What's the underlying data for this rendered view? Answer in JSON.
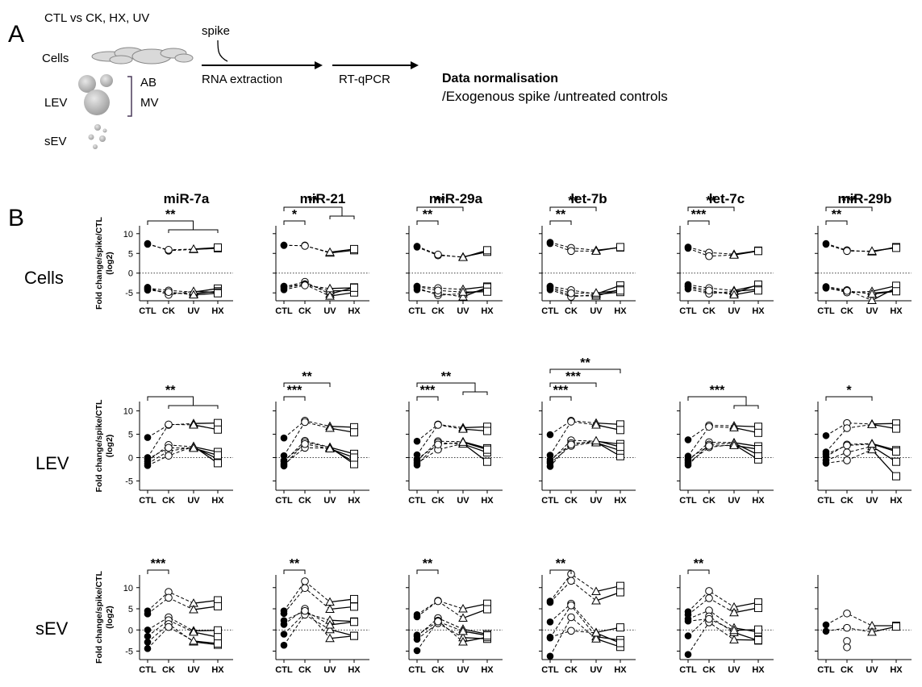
{
  "panel_a": {
    "letter": "A",
    "condition_label": "CTL vs CK, HX, UV",
    "cells_label": "Cells",
    "lev_label": "LEV",
    "sev_label": "sEV",
    "ab_label": "AB",
    "mv_label": "MV",
    "spike_label": "spike",
    "rna_label": "RNA extraction",
    "qpcr_label": "RT-qPCR",
    "norm_title": "Data normalisation",
    "norm_subtitle": "/Exogenous spike /untreated controls"
  },
  "panel_b": {
    "letter": "B",
    "row_labels": [
      "Cells",
      "LEV",
      "sEV"
    ],
    "ylabel_line1": "Fold change/spike/CTL",
    "ylabel_line2": "(log2)"
  },
  "chart_data": {
    "type": "line",
    "categories": [
      "CTL",
      "CK",
      "UV",
      "HX"
    ],
    "markers": {
      "CTL": "filled-circle",
      "CK": "open-circle",
      "UV": "open-triangle",
      "HX": "open-square"
    },
    "mirnas": [
      "miR-7a",
      "miR-21",
      "miR-29a",
      "let-7b",
      "let-7c",
      "miR-29b"
    ],
    "rows": [
      {
        "name": "Cells",
        "ylim": [
          -7,
          12
        ],
        "yticks": [
          -5,
          0,
          5,
          10
        ],
        "panels": [
          {
            "series": [
              [
                7.5,
                5.7,
                6,
                6.3
              ],
              [
                7.3,
                5.9,
                6.1,
                6.5
              ],
              [
                -3.8,
                -4.4,
                -4.8,
                -3.9
              ],
              [
                -4,
                -5,
                -5.2,
                -4.6
              ],
              [
                -3.6,
                -5.5,
                -4.6,
                -4.9
              ],
              [
                -4.3,
                -4.8,
                -5.5,
                -5.1
              ]
            ],
            "sig": [
              {
                "label": "**",
                "type": "bracket_group",
                "from": 0,
                "to": [
                  1,
                  3
                ]
              }
            ]
          },
          {
            "series": [
              [
                7,
                7,
                5.1,
                5.8
              ],
              [
                7.1,
                6.9,
                5.3,
                6.1
              ],
              [
                -3.5,
                -2.2,
                -5.3,
                -3.6
              ],
              [
                -3.8,
                -2.8,
                -4.5,
                -4.4
              ],
              [
                -3.3,
                -2.9,
                -5.8,
                -4.9
              ],
              [
                -4.2,
                -3.1,
                -3.9,
                -3.7
              ]
            ],
            "sig": [
              {
                "label": "*",
                "type": "bar",
                "from": 0,
                "to": 1
              },
              {
                "label": "**",
                "type": "bracket_group",
                "from": 0,
                "to": [
                  2,
                  3
                ]
              }
            ]
          },
          {
            "series": [
              [
                6.6,
                4.5,
                4.1,
                5.4
              ],
              [
                6.8,
                4.7,
                4,
                5.8
              ],
              [
                -3.3,
                -3.8,
                -4.1,
                -3.4
              ],
              [
                -3.7,
                -5.6,
                -5.2,
                -4.2
              ],
              [
                -4.2,
                -5.1,
                -6,
                -3.6
              ],
              [
                -3.4,
                -4.4,
                -4.8,
                -4.7
              ]
            ],
            "sig": [
              {
                "label": "**",
                "type": "bar",
                "from": 0,
                "to": 1
              },
              {
                "label": "**",
                "type": "bar",
                "from": 0,
                "to": 2
              }
            ]
          },
          {
            "series": [
              [
                7.8,
                6.4,
                5.8,
                6.5
              ],
              [
                7.5,
                5.6,
                5.6,
                6.6
              ],
              [
                -3.3,
                -4.3,
                -5.3,
                -3.1
              ],
              [
                -3.8,
                -5.7,
                -5.8,
                -4.1
              ],
              [
                -4.2,
                -6,
                -5.4,
                -4.8
              ],
              [
                -3.5,
                -5.1,
                -5,
                -4.4
              ]
            ],
            "sig": [
              {
                "label": "**",
                "type": "bar",
                "from": 0,
                "to": 1
              },
              {
                "label": "**",
                "type": "bar",
                "from": 0,
                "to": 2
              }
            ]
          },
          {
            "series": [
              [
                6.6,
                5.2,
                4.8,
                5.7
              ],
              [
                6.3,
                4.3,
                4.6,
                5.6
              ],
              [
                -2.9,
                -3.8,
                -4.4,
                -3.1
              ],
              [
                -3.5,
                -4.9,
                -5.1,
                -2.9
              ],
              [
                -4,
                -5.2,
                -4.6,
                -4.1
              ],
              [
                -3.3,
                -4.4,
                -5.5,
                -4.4
              ]
            ],
            "sig": [
              {
                "label": "***",
                "type": "bar",
                "from": 0,
                "to": 1
              },
              {
                "label": "**",
                "type": "bar",
                "from": 0,
                "to": 2
              }
            ]
          },
          {
            "series": [
              [
                7.5,
                5.8,
                5.4,
                6.6
              ],
              [
                7.3,
                5.6,
                5.6,
                6.4
              ],
              [
                -3.4,
                -4.3,
                -6.9,
                -3.7
              ],
              [
                -3.8,
                -4.7,
                -5.1,
                -4.5
              ],
              [
                -3.6,
                -4.9,
                -4.6,
                -3.2
              ],
              [
                -3.7,
                -4.5,
                -5.3,
                -4.6
              ]
            ],
            "sig": [
              {
                "label": "**",
                "type": "bar",
                "from": 0,
                "to": 1
              },
              {
                "label": "***",
                "type": "bar",
                "from": 0,
                "to": 2
              }
            ]
          }
        ]
      },
      {
        "name": "LEV",
        "ylim": [
          -7,
          12
        ],
        "yticks": [
          -5,
          0,
          5,
          10
        ],
        "panels": [
          {
            "series": [
              [
                4.3,
                7,
                7.3,
                7.4
              ],
              [
                0,
                7.1,
                7,
                6
              ],
              [
                -0.8,
                2.7,
                2.3,
                1.2
              ],
              [
                -1.3,
                1.4,
                2.2,
                -0.3
              ],
              [
                -1.7,
                0.4,
                2.4,
                -1.2
              ],
              [
                -0.3,
                2.1,
                2,
                0.5
              ]
            ],
            "sig": [
              {
                "label": "**",
                "type": "bracket_group",
                "from": 0,
                "to": [
                  1,
                  3
                ]
              }
            ]
          },
          {
            "series": [
              [
                4.2,
                7.9,
                6.7,
                6.5
              ],
              [
                0.4,
                7.6,
                6.3,
                5.4
              ],
              [
                -0.9,
                3.6,
                2.2,
                0.8
              ],
              [
                -1.4,
                2.1,
                2,
                -0.9
              ],
              [
                -1.8,
                3.3,
                2.2,
                -1.4
              ],
              [
                -0.6,
                2.9,
                1.9,
                0
              ]
            ],
            "sig": [
              {
                "label": "***",
                "type": "bar",
                "from": 0,
                "to": 1
              },
              {
                "label": "**",
                "type": "bar",
                "from": 0,
                "to": 2
              }
            ]
          },
          {
            "series": [
              [
                3.5,
                7.1,
                6.4,
                6.6
              ],
              [
                0.6,
                7,
                6.1,
                5.7
              ],
              [
                -0.7,
                3.5,
                3.4,
                2
              ],
              [
                -1.2,
                1.7,
                3,
                -0.9
              ],
              [
                -1.6,
                3.2,
                2.9,
                1.1
              ],
              [
                -0.3,
                2.8,
                3.3,
                1.7
              ]
            ],
            "sig": [
              {
                "label": "***",
                "type": "bar",
                "from": 0,
                "to": 1
              },
              {
                "label": "**",
                "type": "bracket_group",
                "from": 0,
                "to": [
                  2,
                  3
                ]
              }
            ]
          },
          {
            "series": [
              [
                4.9,
                7.9,
                7.4,
                7.1
              ],
              [
                0.5,
                7.7,
                7,
                5.9
              ],
              [
                -0.8,
                3.7,
                3.5,
                2.9
              ],
              [
                -1.2,
                2.5,
                3.3,
                0.3
              ],
              [
                -1.9,
                3.1,
                3.2,
                1.5
              ],
              [
                -0.4,
                2.8,
                3.6,
                2.3
              ]
            ],
            "sig": [
              {
                "label": "***",
                "type": "bar",
                "from": 0,
                "to": 1
              },
              {
                "label": "***",
                "type": "bar",
                "from": 0,
                "to": 2
              },
              {
                "label": "**",
                "type": "bar",
                "from": 0,
                "to": 3
              }
            ]
          },
          {
            "series": [
              [
                3.8,
                6.9,
                6.8,
                6.6
              ],
              [
                0.3,
                6.6,
                6.4,
                5.3
              ],
              [
                -0.7,
                3.3,
                3.2,
                2.4
              ],
              [
                -1.2,
                2.2,
                2.8,
                -0.4
              ],
              [
                -1.6,
                2.8,
                3.1,
                0.6
              ],
              [
                -0.3,
                2.5,
                2.6,
                1.8
              ]
            ],
            "sig": [
              {
                "label": "***",
                "type": "bracket_group",
                "from": 0,
                "to": [
                  2,
                  3
                ]
              }
            ]
          },
          {
            "series": [
              [
                4.7,
                7.4,
                7.2,
                7.3
              ],
              [
                1.2,
                6.3,
                7.1,
                6.2
              ],
              [
                0.2,
                2.8,
                3,
                1.6
              ],
              [
                -0.6,
                1.1,
                2.4,
                -0.9
              ],
              [
                -1.2,
                -0.6,
                1.7,
                -4
              ],
              [
                0.7,
                2.6,
                2.9,
                1.3
              ]
            ],
            "sig": [
              {
                "label": "*",
                "type": "bar",
                "from": 0,
                "to": 2
              }
            ]
          }
        ]
      },
      {
        "name": "sEV",
        "ylim": [
          -7,
          13
        ],
        "yticks": [
          -5,
          0,
          5,
          10
        ],
        "panels": [
          {
            "series": [
              [
                4.5,
                9,
                6.3,
                7
              ],
              [
                3.8,
                7.6,
                4.8,
                5.6
              ],
              [
                0,
                3,
                -0.2,
                -0.1
              ],
              [
                -1.5,
                2.3,
                -0.5,
                -1.7
              ],
              [
                -2.9,
                1.4,
                -2.8,
                -3.5
              ],
              [
                -4.4,
                0.7,
                -2.6,
                -3.2
              ]
            ],
            "sig": [
              {
                "label": "***",
                "type": "bar",
                "from": 0,
                "to": 1
              }
            ]
          },
          {
            "series": [
              [
                4.5,
                11.5,
                6.6,
                7.3
              ],
              [
                3.9,
                9.9,
                4.9,
                5.5
              ],
              [
                1.3,
                5,
                -2,
                -1.4
              ],
              [
                -1,
                4,
                2.3,
                2
              ],
              [
                -3.6,
                3.6,
                0.1,
                -1.4
              ],
              [
                2.2,
                4.5,
                1.2,
                1.9
              ]
            ],
            "sig": [
              {
                "label": "**",
                "type": "bar",
                "from": 0,
                "to": 1
              }
            ]
          },
          {
            "series": [
              [
                3.6,
                6.9,
                5,
                6.2
              ],
              [
                3.1,
                6.8,
                2.8,
                4.9
              ],
              [
                -1.5,
                2.8,
                0.2,
                -1
              ],
              [
                -2.2,
                1.6,
                -1.8,
                -2.1
              ],
              [
                -4.9,
                2.2,
                -2.8,
                -1.7
              ],
              [
                -1.2,
                2,
                -0.3,
                -1.3
              ]
            ],
            "sig": [
              {
                "label": "**",
                "type": "bar",
                "from": 0,
                "to": 1
              }
            ]
          },
          {
            "series": [
              [
                6.8,
                13.2,
                9.1,
                10.4
              ],
              [
                6.5,
                11.6,
                6.9,
                8.9
              ],
              [
                1.9,
                6.2,
                -0.6,
                0.6
              ],
              [
                -1.9,
                5.8,
                -1.6,
                -2.4
              ],
              [
                -6.2,
                3,
                -2.1,
                -4
              ],
              [
                -1.7,
                -0.2,
                -0.7,
                -3.1
              ]
            ],
            "sig": [
              {
                "label": "**",
                "type": "bar",
                "from": 0,
                "to": 1
              }
            ]
          },
          {
            "series": [
              [
                4.3,
                9.2,
                5.4,
                6.5
              ],
              [
                3.6,
                7.5,
                4.1,
                5.2
              ],
              [
                2.6,
                4.6,
                0.5,
                -0.5
              ],
              [
                -1.4,
                3.2,
                -0.6,
                -2.5
              ],
              [
                -5.8,
                1.8,
                -2.3,
                -2.4
              ],
              [
                2.1,
                2.6,
                -0.1,
                0.1
              ]
            ],
            "sig": [
              {
                "label": "**",
                "type": "bar",
                "from": 0,
                "to": 1
              }
            ]
          },
          {
            "series": [
              [
                1.2,
                3.9,
                1,
                1
              ],
              [
                -0.3,
                0.5,
                -0.5,
                0.8
              ]
            ],
            "extra_ck_points": [
              -2.6,
              -4.1
            ],
            "sig": []
          }
        ]
      }
    ]
  }
}
